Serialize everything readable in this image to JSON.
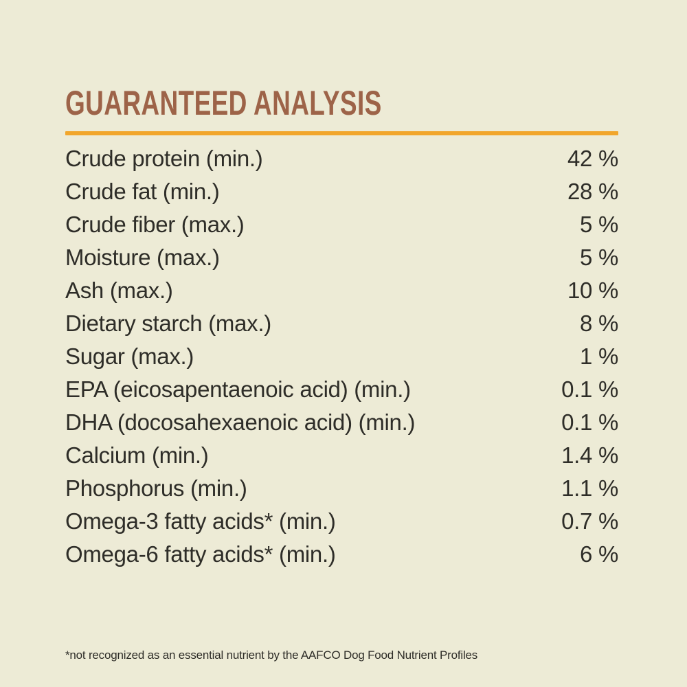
{
  "page": {
    "background_color": "#edebd6",
    "text_color": "#2e2d28"
  },
  "header": {
    "title": "GUARANTEED ANALYSIS",
    "title_color": "#9d6348",
    "divider_color": "#f1a62c"
  },
  "analysis_table": {
    "rows": [
      {
        "label": "Crude protein (min.)",
        "value": "42 %"
      },
      {
        "label": "Crude fat (min.)",
        "value": "28 %"
      },
      {
        "label": "Crude fiber (max.)",
        "value": "5 %"
      },
      {
        "label": "Moisture (max.)",
        "value": "5 %"
      },
      {
        "label": "Ash (max.)",
        "value": "10 %"
      },
      {
        "label": "Dietary starch (max.)",
        "value": "8 %"
      },
      {
        "label": "Sugar (max.)",
        "value": "1 %"
      },
      {
        "label": "EPA (eicosapentaenoic acid) (min.)",
        "value": "0.1 %"
      },
      {
        "label": "DHA (docosahexaenoic acid) (min.)",
        "value": "0.1 %"
      },
      {
        "label": "Calcium (min.)",
        "value": "1.4 %"
      },
      {
        "label": "Phosphorus (min.)",
        "value": "1.1 %"
      },
      {
        "label": "Omega-3 fatty acids* (min.)",
        "value": "0.7 %"
      },
      {
        "label": "Omega-6 fatty acids* (min.)",
        "value": "6 %"
      }
    ]
  },
  "footnote": {
    "text": "*not recognized as an essential nutrient by the AAFCO Dog Food Nutrient Profiles"
  }
}
